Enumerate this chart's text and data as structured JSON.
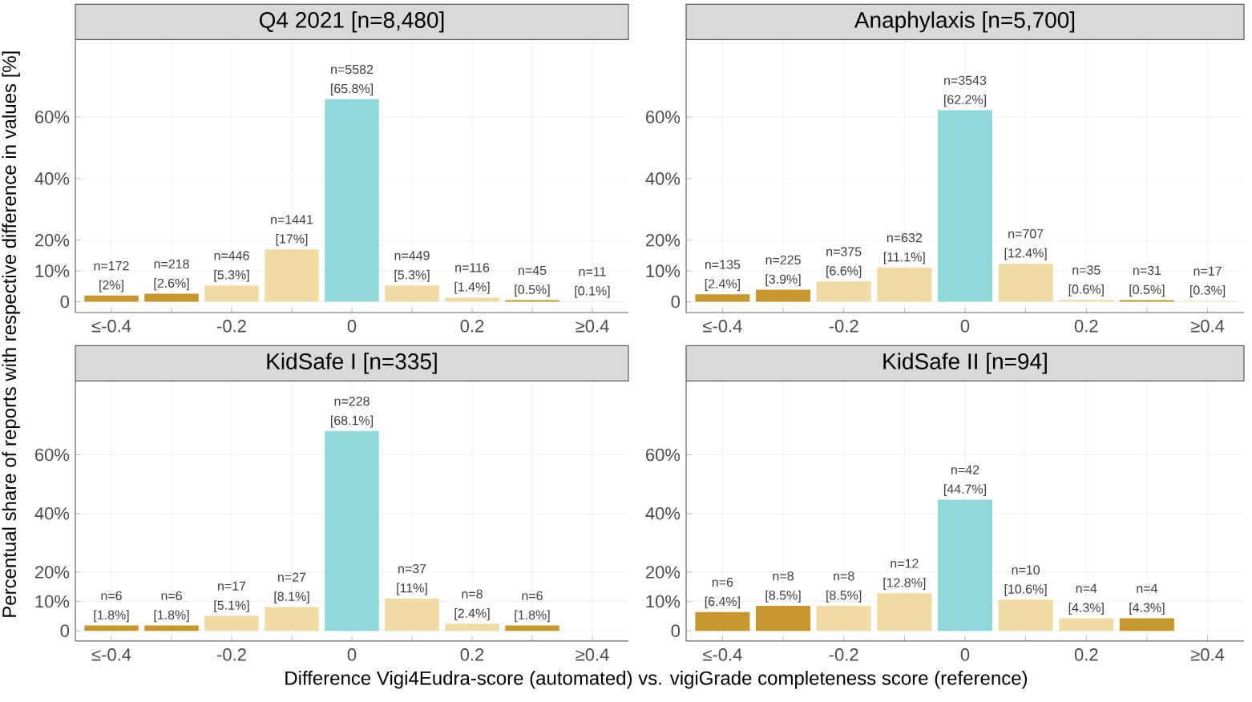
{
  "chart_data": [
    {
      "type": "bar",
      "title": "Q4 2021 [n=8,480]",
      "ylabel": "Percentual share of reports with respective difference in values [%]",
      "categories": [
        "≤-0.4",
        null,
        "-0.2",
        null,
        "0",
        null,
        "0.2",
        null,
        "≥0.4"
      ],
      "values": [
        2,
        2.6,
        5.3,
        17,
        65.8,
        5.3,
        1.4,
        0.5,
        0.1
      ],
      "colors": [
        "#c8962e",
        "#c8962e",
        "#efdba3",
        "#efdba3",
        "#91d8d8",
        "#efdba3",
        "#efdba3",
        "#c8962e",
        "#efdba3"
      ],
      "value_labels": [
        "n=172 [2%]",
        "n=218 [2.6%]",
        "n=446 [5.3%]",
        "n=1441 [17%]",
        "n=5582 [65.8%]",
        "n=449 [5.3%]",
        "n=116 [1.4%]",
        "n=45 [0.5%]",
        "n=11 [0.1%]"
      ],
      "ylim": [
        -3.5,
        85
      ],
      "yticks": [
        0,
        {
          "value": 10,
          "label": "10%"
        },
        {
          "value": 20,
          "label": "20%"
        },
        {
          "value": 40,
          "label": "40%"
        },
        {
          "value": 60,
          "label": "60%"
        }
      ],
      "grid": true
    },
    {
      "type": "bar",
      "title": "Anaphylaxis [n=5,700]",
      "categories": [
        "≤-0.4",
        null,
        "-0.2",
        null,
        "0",
        null,
        "0.2",
        null,
        "≥0.4"
      ],
      "values": [
        2.4,
        3.9,
        6.6,
        11.1,
        62.2,
        12.4,
        0.6,
        0.5,
        0.3
      ],
      "colors": [
        "#c8962e",
        "#c8962e",
        "#efdba3",
        "#efdba3",
        "#91d8d8",
        "#efdba3",
        "#efdba3",
        "#c8962e",
        "#efdba3"
      ],
      "value_labels": [
        "n=135 [2.4%]",
        "n=225 [3.9%]",
        "n=375 [6.6%]",
        "n=632 [11.1%]",
        "n=3543 [62.2%]",
        "n=707 [12.4%]",
        "n=35 [0.6%]",
        "n=31 [0.5%]",
        "n=17 [0.3%]"
      ],
      "ylim": [
        -3.5,
        85
      ],
      "yticks": [
        0,
        {
          "value": 10,
          "label": "10%"
        },
        {
          "value": 20,
          "label": "20%"
        },
        {
          "value": 40,
          "label": "40%"
        },
        {
          "value": 60,
          "label": "60%"
        }
      ],
      "grid": true
    },
    {
      "type": "bar",
      "title": "KidSafe I [n=335]",
      "xlabel": "Difference Vigi4Eudra-score (automated) vs. vigiGrade completeness score (reference)",
      "categories": [
        "≤-0.4",
        null,
        "-0.2",
        null,
        "0",
        null,
        "0.2",
        null,
        "≥0.4"
      ],
      "values": [
        1.8,
        1.8,
        5.1,
        8.1,
        68.1,
        11,
        2.4,
        1.8,
        null
      ],
      "colors": [
        "#c8962e",
        "#c8962e",
        "#efdba3",
        "#efdba3",
        "#91d8d8",
        "#efdba3",
        "#efdba3",
        "#c8962e",
        "#efdba3"
      ],
      "value_labels": [
        "n=6 [1.8%]",
        "n=6 [1.8%]",
        "n=17 [5.1%]",
        "n=27 [8.1%]",
        "n=228 [68.1%]",
        "n=37 [11%]",
        "n=8 [2.4%]",
        "n=6 [1.8%]",
        null
      ],
      "ylim": [
        -3.5,
        85
      ],
      "yticks": [
        0,
        {
          "value": 10,
          "label": "10%"
        },
        {
          "value": 20,
          "label": "20%"
        },
        {
          "value": 40,
          "label": "40%"
        },
        {
          "value": 60,
          "label": "60%"
        }
      ],
      "grid": true
    },
    {
      "type": "bar",
      "title": "KidSafe II [n=94]",
      "categories": [
        "≤-0.4",
        null,
        "-0.2",
        null,
        "0",
        null,
        "0.2",
        null,
        "≥0.4"
      ],
      "values": [
        6.4,
        8.5,
        8.5,
        12.8,
        44.7,
        10.6,
        4.3,
        4.3,
        null
      ],
      "colors": [
        "#c8962e",
        "#c8962e",
        "#efdba3",
        "#efdba3",
        "#91d8d8",
        "#efdba3",
        "#efdba3",
        "#c8962e",
        "#efdba3"
      ],
      "value_labels": [
        "n=6 [6.4%]",
        "n=8 [8.5%]",
        "n=8 [8.5%]",
        "n=12 [12.8%]",
        "n=42 [44.7%]",
        "n=10 [10.6%]",
        "n=4 [4.3%]",
        "n=4 [4.3%]",
        null
      ],
      "ylim": [
        -3.5,
        85
      ],
      "yticks": [
        0,
        {
          "value": 10,
          "label": "10%"
        },
        {
          "value": 20,
          "label": "20%"
        },
        {
          "value": 40,
          "label": "40%"
        },
        {
          "value": 60,
          "label": "60%"
        }
      ],
      "grid": true
    }
  ]
}
